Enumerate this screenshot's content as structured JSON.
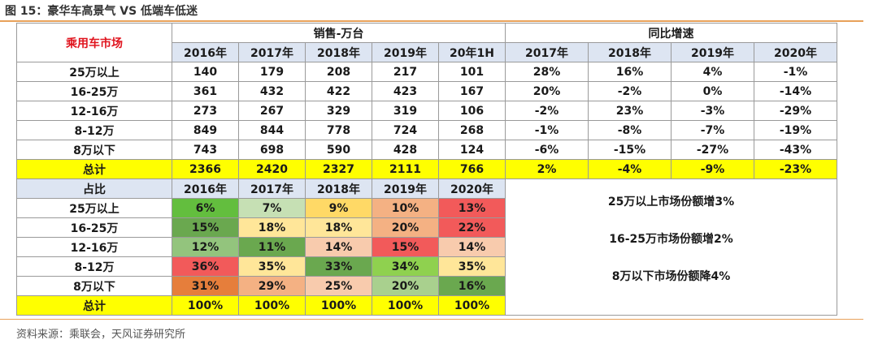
{
  "figure_title": "图 15：豪华车高景气 VS 低端车低迷",
  "source": "资料来源：乘联会，天风证券研究所",
  "table": {
    "market_header": "乘用车市场",
    "sales_header": "销售-万台",
    "growth_header": "同比增速",
    "sales_years": [
      "2016年",
      "2017年",
      "2018年",
      "2019年",
      "20年1H"
    ],
    "growth_years": [
      "2017年",
      "2018年",
      "2019年",
      "2020年"
    ],
    "rows": [
      {
        "label": "25万以上",
        "sales": [
          "140",
          "179",
          "208",
          "217",
          "101"
        ],
        "growth": [
          "28%",
          "16%",
          "4%",
          "-1%"
        ]
      },
      {
        "label": "16-25万",
        "sales": [
          "361",
          "432",
          "422",
          "423",
          "167"
        ],
        "growth": [
          "20%",
          "-2%",
          "0%",
          "-14%"
        ]
      },
      {
        "label": "12-16万",
        "sales": [
          "273",
          "267",
          "329",
          "319",
          "106"
        ],
        "growth": [
          "-2%",
          "23%",
          "-3%",
          "-29%"
        ]
      },
      {
        "label": "8-12万",
        "sales": [
          "849",
          "844",
          "778",
          "724",
          "268"
        ],
        "growth": [
          "-1%",
          "-8%",
          "-7%",
          "-19%"
        ]
      },
      {
        "label": "8万以下",
        "sales": [
          "743",
          "698",
          "590",
          "428",
          "124"
        ],
        "growth": [
          "-6%",
          "-15%",
          "-27%",
          "-43%"
        ]
      }
    ],
    "total": {
      "label": "总计",
      "sales": [
        "2366",
        "2420",
        "2327",
        "2111",
        "766"
      ],
      "growth": [
        "2%",
        "-4%",
        "-9%",
        "-23%"
      ]
    },
    "share_header": "占比",
    "share_years": [
      "2016年",
      "2017年",
      "2018年",
      "2019年",
      "2020年"
    ],
    "share_rows": [
      {
        "label": "25万以上",
        "values": [
          "6%",
          "7%",
          "9%",
          "10%",
          "13%"
        ],
        "colors": [
          "#63be3e",
          "#c6e0b4",
          "#ffd966",
          "#f4b183",
          "#f25a5a"
        ]
      },
      {
        "label": "16-25万",
        "values": [
          "15%",
          "18%",
          "18%",
          "20%",
          "22%"
        ],
        "colors": [
          "#6aa84f",
          "#ffe699",
          "#ffe699",
          "#f4b183",
          "#f25a5a"
        ]
      },
      {
        "label": "12-16万",
        "values": [
          "12%",
          "11%",
          "14%",
          "15%",
          "14%"
        ],
        "colors": [
          "#93c47d",
          "#6aa84f",
          "#f8cbad",
          "#f25a5a",
          "#f8cbad"
        ]
      },
      {
        "label": "8-12万",
        "values": [
          "36%",
          "35%",
          "33%",
          "34%",
          "35%"
        ],
        "colors": [
          "#f25a5a",
          "#ffe699",
          "#6aa84f",
          "#8fd14f",
          "#ffe699"
        ]
      },
      {
        "label": "8万以下",
        "values": [
          "31%",
          "29%",
          "25%",
          "20%",
          "16%"
        ],
        "colors": [
          "#e67e3b",
          "#f4b183",
          "#f8cbad",
          "#a9d08e",
          "#6aa84f"
        ]
      }
    ],
    "share_total": {
      "label": "总计",
      "values": [
        "100%",
        "100%",
        "100%",
        "100%",
        "100%"
      ]
    },
    "notes": [
      "25万以上市场份额增3%",
      "16-25万市场份额增2%",
      "8万以下市场份额降4%"
    ]
  }
}
